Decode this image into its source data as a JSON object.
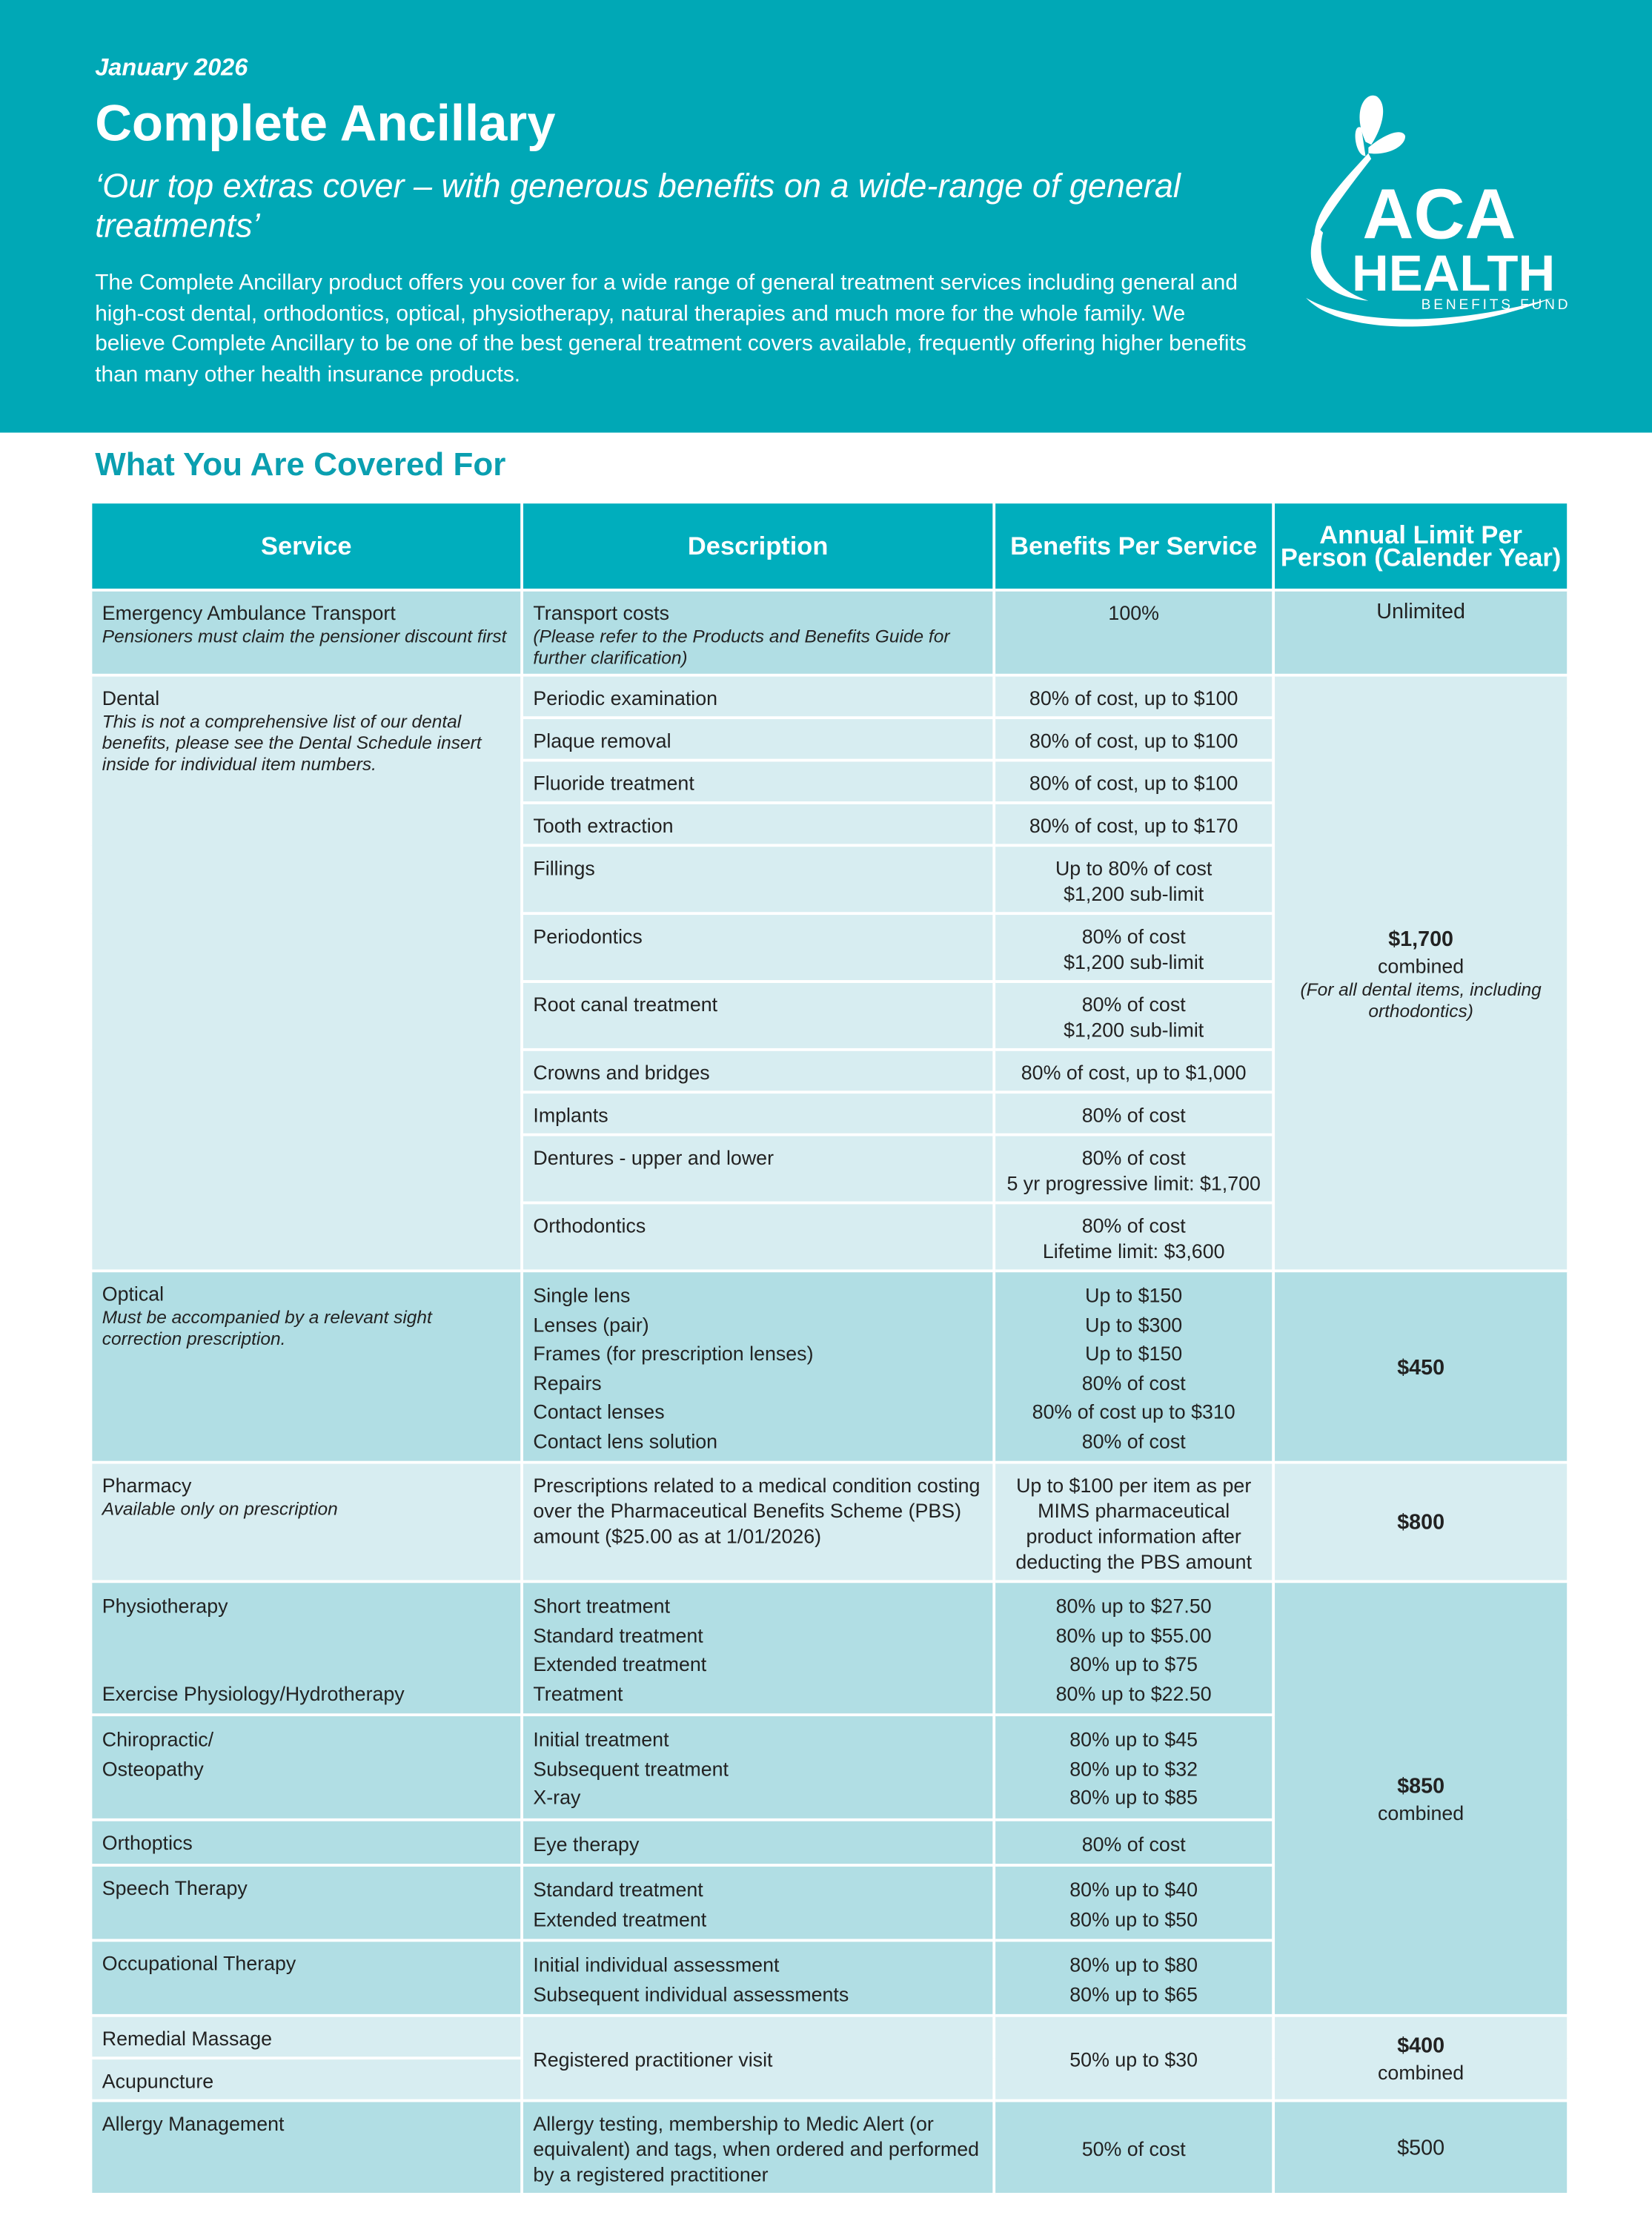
{
  "header": {
    "date": "January 2026",
    "title": "Complete Ancillary",
    "tagline": "‘Our top extras cover – with generous benefits on a wide-range of general treatments’",
    "intro": "The Complete Ancillary product offers you cover for a wide range of general treatment services including general and high-cost dental, orthodontics, optical, physiotherapy, natural therapies and much more for the whole family. We believe Complete Ancillary to be one of the best general treatment covers available, frequently offering higher benefits than many other health insurance products."
  },
  "logo": {
    "line1": "ACA",
    "line2": "HEALTH",
    "line3": "BENEFITS FUND"
  },
  "section_title": "What You Are Covered For",
  "table": {
    "headers": [
      "Service",
      "Description",
      "Benefits Per Service",
      "Annual Limit Per Person (Calender Year)"
    ],
    "groups": [
      {
        "service": "Emergency Ambulance Transport",
        "note": "Pensioners must claim the pensioner discount first",
        "description": "Transport costs",
        "description_note": "(Please refer to the Products and Benefits Guide for further clarification)",
        "benefit": "100%",
        "limit": "Unlimited"
      },
      {
        "service": "Dental",
        "note": "This is not a comprehensive list of our dental benefits, please see the Dental Schedule insert inside for individual item numbers.",
        "items": [
          {
            "description": "Periodic examination",
            "benefit": [
              "80% of cost, up to $100"
            ]
          },
          {
            "description": "Plaque removal",
            "benefit": [
              "80% of cost, up to $100"
            ]
          },
          {
            "description": "Fluoride treatment",
            "benefit": [
              "80% of cost, up to $100"
            ]
          },
          {
            "description": "Tooth extraction",
            "benefit": [
              "80% of cost, up to $170"
            ]
          },
          {
            "description": "Fillings",
            "benefit": [
              "Up to 80% of cost",
              "$1,200 sub-limit"
            ]
          },
          {
            "description": "Periodontics",
            "benefit": [
              "80% of cost",
              "$1,200 sub-limit"
            ]
          },
          {
            "description": "Root canal treatment",
            "benefit": [
              "80% of cost",
              "$1,200 sub-limit"
            ]
          },
          {
            "description": "Crowns and bridges",
            "benefit": [
              "80% of cost, up to $1,000"
            ]
          },
          {
            "description": "Implants",
            "benefit": [
              "80% of cost"
            ]
          },
          {
            "description": "Dentures - upper and lower",
            "benefit": [
              "80% of cost",
              "5 yr progressive limit: $1,700"
            ]
          },
          {
            "description": "Orthodontics",
            "benefit": [
              "80% of cost",
              "Lifetime limit: $3,600"
            ]
          }
        ],
        "limit": "$1,700",
        "limit_sub": "combined",
        "limit_note": "(For all dental items, including orthodontics)"
      },
      {
        "service": "Optical",
        "note": "Must be accompanied by a relevant sight correction prescription.",
        "items": [
          {
            "description": "Single lens",
            "benefit": "Up to $150"
          },
          {
            "description": "Lenses (pair)",
            "benefit": "Up to $300"
          },
          {
            "description": "Frames (for prescription lenses)",
            "benefit": "Up to $150"
          },
          {
            "description": "Repairs",
            "benefit": "80% of cost"
          },
          {
            "description": "Contact lenses",
            "benefit": "80% of cost up to $310"
          },
          {
            "description": "Contact lens solution",
            "benefit": "80% of cost"
          }
        ],
        "limit": "$450"
      },
      {
        "service": "Pharmacy",
        "note": "Available only on prescription",
        "description": "Prescriptions related to a medical condition costing over the Pharmaceutical Benefits Scheme (PBS) amount ($25.00 as at 1/01/2026)",
        "benefit": "Up to $100 per item as per MIMS pharmaceutical product information after deducting the PBS amount",
        "limit": "$800"
      },
      {
        "service": [
          "Physiotherapy",
          "Exercise Physiology/Hydrotherapy"
        ],
        "items": [
          {
            "description": "Short treatment",
            "benefit": "80% up to $27.50"
          },
          {
            "description": "Standard treatment",
            "benefit": "80% up to $55.00"
          },
          {
            "description": "Extended treatment",
            "benefit": "80% up to $75"
          },
          {
            "description": "Treatment",
            "benefit": "80% up to $22.50"
          }
        ],
        "limit": "$850",
        "limit_sub": "combined"
      },
      {
        "service": [
          "Chiropractic/",
          "Osteopathy"
        ],
        "items": [
          {
            "description": "Initial treatment",
            "benefit": "80% up to $45"
          },
          {
            "description": "Subsequent treatment",
            "benefit": "80% up to $32"
          },
          {
            "description": "X-ray",
            "benefit": "80% up to $85"
          }
        ]
      },
      {
        "service": "Orthoptics",
        "items": [
          {
            "description": "Eye therapy",
            "benefit": "80% of cost"
          }
        ]
      },
      {
        "service": "Speech Therapy",
        "items": [
          {
            "description": "Standard treatment",
            "benefit": "80% up to $40"
          },
          {
            "description": "Extended treatment",
            "benefit": "80% up to $50"
          }
        ]
      },
      {
        "service": "Occupational Therapy",
        "items": [
          {
            "description": "Initial individual assessment",
            "benefit": "80% up to $80"
          },
          {
            "description": "Subsequent individual assessments",
            "benefit": "80% up to $65"
          }
        ]
      },
      {
        "service": [
          "Remedial Massage",
          "Acupuncture"
        ],
        "description": "Registered practitioner visit",
        "benefit": "50% up to $30",
        "limit": "$400",
        "limit_sub": "combined"
      },
      {
        "service": "Allergy Management",
        "description": "Allergy testing, membership to Medic Alert (or equivalent) and tags, when ordered and performed by a registered practitioner",
        "benefit": "50% of cost",
        "limit": "$500"
      }
    ]
  }
}
